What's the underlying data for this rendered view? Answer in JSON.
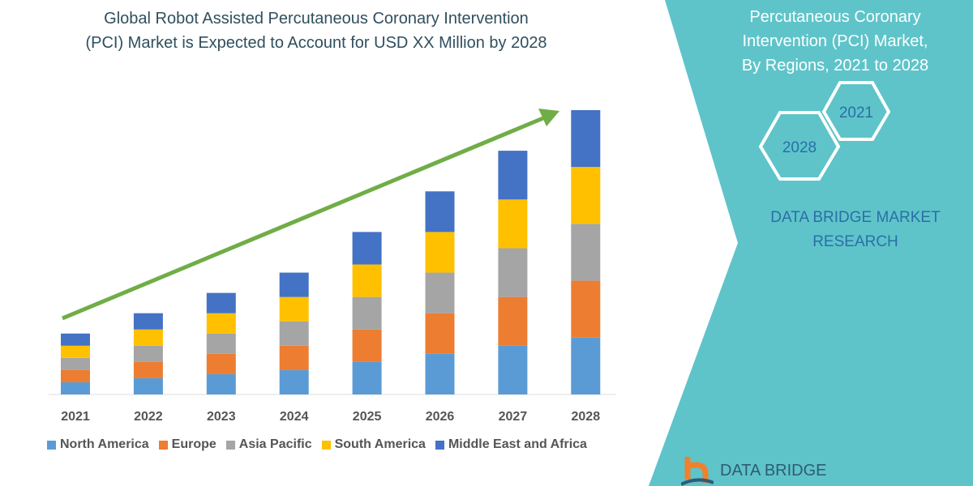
{
  "title_line1": "Global Robot Assisted Percutaneous Coronary Intervention",
  "title_line2": "(PCI) Market is Expected to Account for USD XX Million by 2028",
  "side_panel": {
    "title_line1": "Percutaneous Coronary",
    "title_line2": "Intervention (PCI) Market,",
    "title_line3": "By Regions,  2021 to 2028",
    "hex_2021": "2021",
    "hex_2028": "2028",
    "brand_line1": "DATA BRIDGE MARKET",
    "brand_line2": "RESEARCH",
    "logo_text": "DATA BRIDGE",
    "panel_color": "#5ec4c9"
  },
  "chart_data": {
    "type": "bar",
    "stacked": true,
    "categories": [
      "2021",
      "2022",
      "2023",
      "2024",
      "2025",
      "2026",
      "2027",
      "2028"
    ],
    "series": [
      {
        "name": "North America",
        "color": "#5b9bd5",
        "values": [
          15,
          20,
          25,
          30,
          40,
          50,
          60,
          70
        ]
      },
      {
        "name": "Europe",
        "color": "#ed7d31",
        "values": [
          15,
          20,
          25,
          30,
          40,
          50,
          60,
          70
        ]
      },
      {
        "name": "Asia Pacific",
        "color": "#a5a5a5",
        "values": [
          15,
          20,
          25,
          30,
          40,
          50,
          60,
          70
        ]
      },
      {
        "name": "South America",
        "color": "#ffc000",
        "values": [
          15,
          20,
          25,
          30,
          40,
          50,
          60,
          70
        ]
      },
      {
        "name": "Middle East and Africa",
        "color": "#4472c4",
        "values": [
          15,
          20,
          25,
          30,
          40,
          50,
          60,
          70
        ]
      }
    ],
    "xlabel": "",
    "ylabel": "",
    "grid": false,
    "legend": "bottom",
    "trend_arrow_color": "#70ad47"
  }
}
